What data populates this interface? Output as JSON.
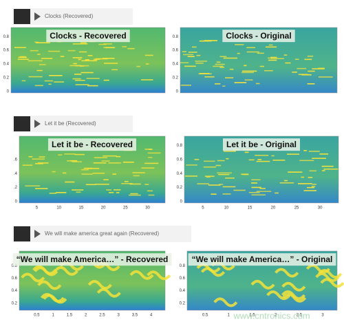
{
  "rows": [
    {
      "player": "Clocks (Recovered)",
      "panels": [
        {
          "title": "Clocks - Recovered",
          "yticks": [
            "0.8",
            "0.6",
            "0.4",
            "0.2",
            "0"
          ]
        },
        {
          "title": "Clocks - Original",
          "yticks": [
            "0.8",
            "0.6",
            "0.4",
            "0.2",
            "0"
          ]
        }
      ]
    },
    {
      "player": "Let it be (Recovered)",
      "panels": [
        {
          "title": "Let it be - Recovered",
          "yticks": [
            ".6",
            ".4",
            ".2",
            "0"
          ],
          "xticks": [
            "5",
            "10",
            "15",
            "20",
            "25",
            "30"
          ]
        },
        {
          "title": "Let it be - Original",
          "yticks": [
            "0.8",
            "0.6",
            "0.4",
            "0.2",
            "0"
          ],
          "xticks": [
            "5",
            "10",
            "15",
            "20",
            "25",
            "30"
          ]
        }
      ]
    },
    {
      "player": "We will make america great again (Recovered)",
      "panels": [
        {
          "title": "“We will make America…” - Recovered",
          "yticks": [
            "0.8",
            "0.6",
            "0.4",
            "0.2"
          ],
          "xticks": [
            "0.5",
            "1",
            "1.5",
            "2",
            "2.5",
            "3",
            "3.5",
            "4"
          ]
        },
        {
          "title": "“We will make America…” - Original",
          "yticks": [
            "0.8",
            "0.6",
            "0.4",
            "0.2"
          ],
          "xticks": [
            "0.5",
            "1",
            "1.5",
            "2",
            "2.5",
            "3"
          ]
        }
      ]
    }
  ],
  "watermark": "www.cntronics.com"
}
